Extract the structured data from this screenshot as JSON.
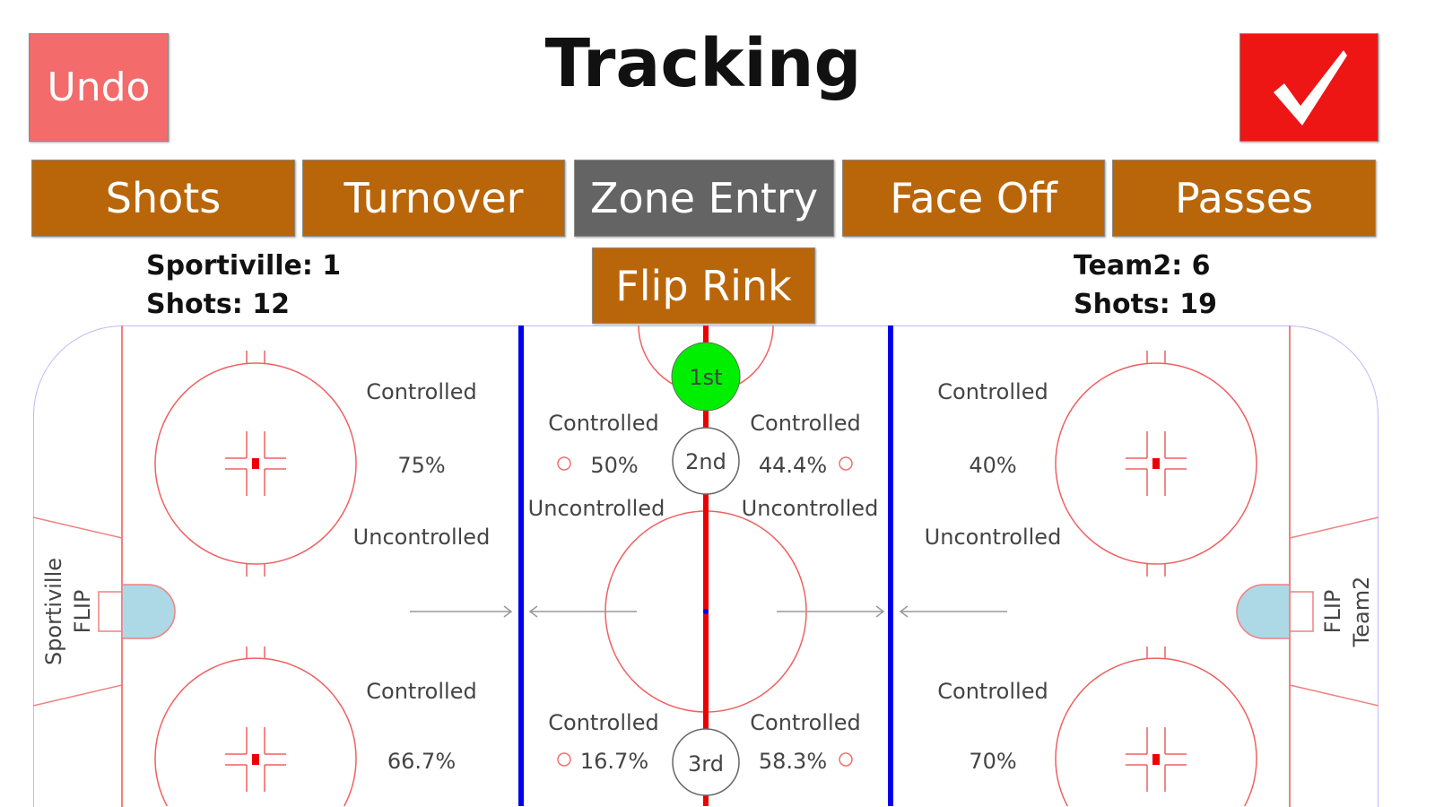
{
  "header": {
    "title": "Tracking",
    "undo_label": "Undo",
    "confirm_icon": "checkmark-icon"
  },
  "tabs": [
    {
      "label": "Shots",
      "active": false
    },
    {
      "label": "Turnover",
      "active": false
    },
    {
      "label": "Zone Entry",
      "active": true
    },
    {
      "label": "Face Off",
      "active": false
    },
    {
      "label": "Passes",
      "active": false
    }
  ],
  "flip_label": "Flip Rink",
  "home": {
    "score_line": "Sportiville: 1",
    "shots_line": "Shots: 12",
    "side_label_team": "Sportiville",
    "side_label_flip": "FLIP"
  },
  "away": {
    "score_line": "Team2: 6",
    "shots_line": "Shots: 19",
    "side_label_team": "Team2",
    "side_label_flip": "FLIP"
  },
  "periods": [
    {
      "label": "1st",
      "active": true
    },
    {
      "label": "2nd",
      "active": false
    },
    {
      "label": "3rd",
      "active": false
    }
  ],
  "zones": {
    "left_top": {
      "controlled": "Controlled",
      "value": "75%",
      "uncontrolled": "Uncontrolled"
    },
    "left_bottom": {
      "controlled": "Controlled",
      "value": "66.7%"
    },
    "center_left_top": {
      "controlled": "Controlled",
      "value": "50%",
      "uncontrolled": "Uncontrolled"
    },
    "center_right_top": {
      "controlled": "Controlled",
      "value": "44.4%",
      "uncontrolled": "Uncontrolled"
    },
    "center_left_bottom": {
      "controlled": "Controlled",
      "value": "16.7%"
    },
    "center_right_bottom": {
      "controlled": "Controlled",
      "value": "58.3%"
    },
    "right_top": {
      "controlled": "Controlled",
      "value": "40%",
      "uncontrolled": "Uncontrolled"
    },
    "right_bottom": {
      "controlled": "Controlled",
      "value": "70%"
    }
  },
  "colors": {
    "tab": "#b9660a",
    "tab_active": "#646464",
    "undo": "#f36b6b",
    "confirm": "#ee1515",
    "period_active": "#00ee00",
    "blue_line": "#0000ee",
    "red_line": "#ee0000",
    "crease": "#add8e6"
  }
}
